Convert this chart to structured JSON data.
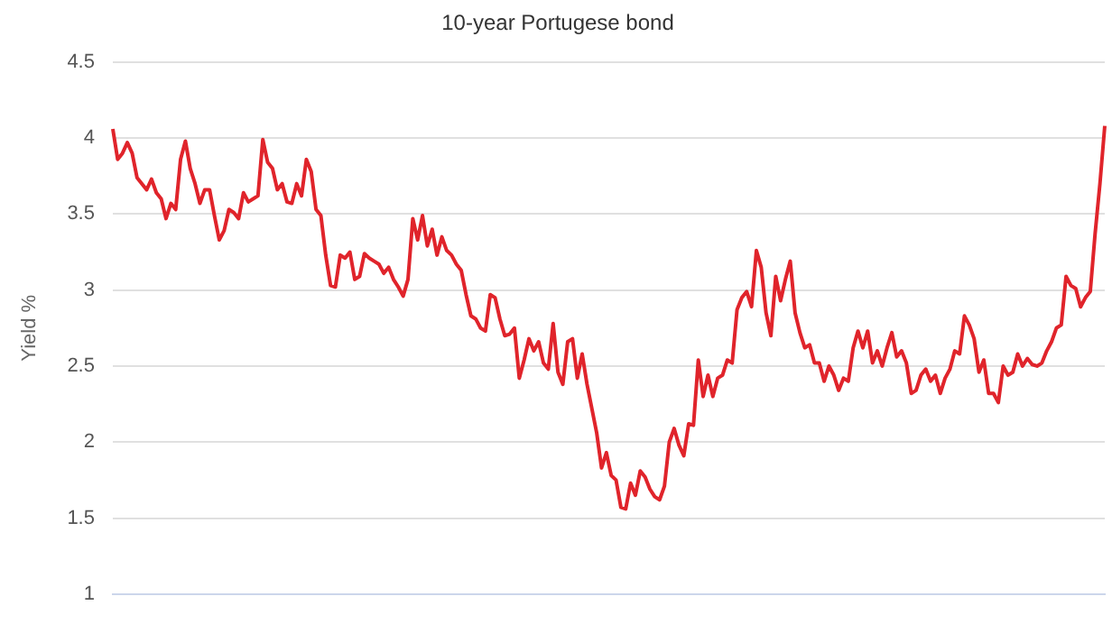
{
  "chart_data": {
    "type": "line",
    "title": "10-year Portugese bond",
    "ylabel": "Yield %",
    "categories": [
      null,
      null,
      null,
      null,
      null,
      null,
      null,
      null,
      null,
      null,
      null,
      null,
      null,
      null,
      null,
      null,
      null,
      null,
      null,
      null,
      null,
      null,
      null,
      null,
      null,
      null,
      null,
      null,
      null,
      null,
      null,
      null,
      null,
      null,
      null,
      null,
      null,
      null,
      null,
      null,
      null,
      null,
      null,
      null,
      null,
      null,
      null,
      null,
      null,
      null,
      null,
      null,
      null,
      null,
      null,
      null,
      null,
      null,
      null,
      null,
      null,
      null,
      null,
      null,
      null,
      null,
      null,
      null,
      null,
      null,
      null,
      null,
      null,
      null,
      null,
      null,
      null,
      null,
      null,
      null,
      null,
      null,
      null,
      null,
      null,
      null,
      null,
      null,
      null,
      null,
      null,
      null,
      null,
      null,
      null,
      null,
      null,
      null,
      null,
      null,
      null,
      null,
      null,
      null,
      null,
      null,
      null,
      null,
      null,
      null,
      null,
      null,
      null,
      null,
      null,
      null,
      null,
      null,
      null,
      null,
      null,
      null,
      null,
      null,
      null,
      null,
      null,
      null,
      null,
      null,
      null,
      null,
      null,
      null,
      null,
      null,
      null,
      null,
      null,
      null,
      null,
      null,
      null,
      null,
      null,
      null,
      null,
      null,
      null,
      null,
      null,
      null,
      null,
      null,
      null,
      null,
      null,
      null,
      null,
      null,
      null,
      null,
      null,
      null,
      null,
      null,
      null,
      null,
      null,
      null,
      null,
      null,
      null,
      null,
      null,
      null,
      null,
      null,
      null,
      null,
      null,
      null,
      null,
      null,
      null,
      null,
      null,
      null,
      null,
      null,
      null,
      null,
      null,
      null,
      null,
      null,
      null,
      null,
      null,
      null,
      null,
      null,
      null,
      null,
      null,
      null
    ],
    "series": [
      {
        "color": "#e0242b",
        "values": [
          4.06,
          3.86,
          3.9,
          3.97,
          3.9,
          3.74,
          3.7,
          3.66,
          3.73,
          3.64,
          3.6,
          3.47,
          3.57,
          3.53,
          3.86,
          3.98,
          3.8,
          3.7,
          3.57,
          3.66,
          3.66,
          3.49,
          3.33,
          3.39,
          3.53,
          3.51,
          3.47,
          3.64,
          3.58,
          3.6,
          3.62,
          3.99,
          3.84,
          3.8,
          3.66,
          3.7,
          3.58,
          3.57,
          3.7,
          3.62,
          3.86,
          3.78,
          3.53,
          3.49,
          3.23,
          3.03,
          3.02,
          3.23,
          3.21,
          3.25,
          3.07,
          3.09,
          3.24,
          3.21,
          3.19,
          3.17,
          3.11,
          3.15,
          3.07,
          3.02,
          2.96,
          3.07,
          3.47,
          3.33,
          3.49,
          3.29,
          3.4,
          3.23,
          3.35,
          3.26,
          3.23,
          3.17,
          3.13,
          2.97,
          2.83,
          2.81,
          2.75,
          2.73,
          2.97,
          2.95,
          2.81,
          2.7,
          2.71,
          2.75,
          2.42,
          2.54,
          2.68,
          2.6,
          2.66,
          2.52,
          2.48,
          2.78,
          2.46,
          2.38,
          2.66,
          2.68,
          2.42,
          2.58,
          2.38,
          2.22,
          2.06,
          1.83,
          1.93,
          1.78,
          1.75,
          1.57,
          1.56,
          1.73,
          1.65,
          1.81,
          1.77,
          1.69,
          1.64,
          1.62,
          1.71,
          2.0,
          2.09,
          1.98,
          1.91,
          2.12,
          2.11,
          2.54,
          2.3,
          2.44,
          2.3,
          2.42,
          2.44,
          2.54,
          2.52,
          2.87,
          2.95,
          2.99,
          2.89,
          3.26,
          3.15,
          2.85,
          2.7,
          3.09,
          2.93,
          3.07,
          3.19,
          2.85,
          2.72,
          2.62,
          2.64,
          2.52,
          2.52,
          2.4,
          2.5,
          2.44,
          2.34,
          2.42,
          2.4,
          2.62,
          2.73,
          2.62,
          2.73,
          2.52,
          2.6,
          2.5,
          2.62,
          2.72,
          2.56,
          2.6,
          2.52,
          2.32,
          2.34,
          2.44,
          2.48,
          2.4,
          2.44,
          2.32,
          2.42,
          2.48,
          2.6,
          2.58,
          2.83,
          2.77,
          2.68,
          2.46,
          2.54,
          2.32,
          2.32,
          2.26,
          2.5,
          2.44,
          2.46,
          2.58,
          2.5,
          2.55,
          2.51,
          2.5,
          2.52,
          2.6,
          2.66,
          2.75,
          2.77,
          3.09,
          3.03,
          3.01,
          2.89,
          2.95,
          2.99,
          3.37,
          3.7,
          4.08
        ]
      }
    ],
    "ylim": [
      1,
      4.5
    ],
    "yticks": [
      1,
      1.5,
      2,
      2.5,
      3,
      3.5,
      4,
      4.5
    ],
    "grid": "y",
    "legend": false,
    "marker": "none",
    "line_style": "solid",
    "tick_labels": "y"
  }
}
